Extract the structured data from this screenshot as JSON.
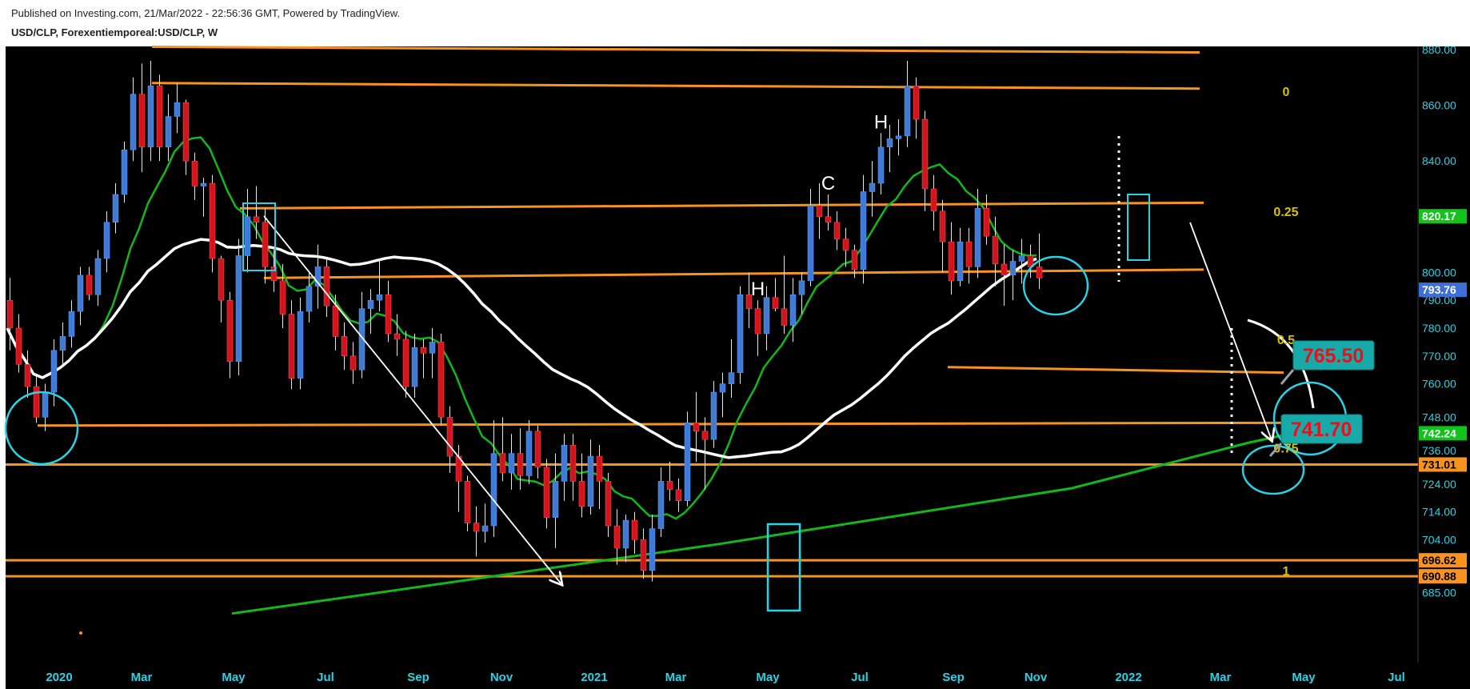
{
  "header": {
    "published": "Published on Investing.com, 21/Mar/2022 - 22:56:36 GMT, Powered by TradingView.",
    "symbol": "USD/CLP, Forexentiemporeal:USD/CLP, W"
  },
  "chart_data": {
    "type": "candlestick",
    "symbol": "USD/CLP",
    "timeframe": "W",
    "yticks": [
      685,
      690.88,
      696.62,
      704,
      714,
      724,
      731.01,
      736,
      742.24,
      748,
      760,
      770,
      780,
      790,
      793.76,
      800,
      820.17,
      840,
      860,
      880
    ],
    "ytick_labels": [
      "685.00",
      "690.88",
      "696.62",
      "704.00",
      "714.00",
      "724.00",
      "731.01",
      "736.00",
      "742.24",
      "748.00",
      "760.00",
      "770.00",
      "780.00",
      "790.00",
      "793.76",
      "800.00",
      "820.17",
      "840.00",
      "860.00",
      "880.00"
    ],
    "xticks": [
      "2020",
      "Mar",
      "May",
      "Jul",
      "Sep",
      "Nov",
      "2021",
      "Mar",
      "May",
      "Jul",
      "Sep",
      "Nov",
      "2022",
      "Mar",
      "May",
      "Jul"
    ],
    "badges": [
      {
        "label": "820.17",
        "value": 820.17,
        "color": "#12c31a"
      },
      {
        "label": "793.76",
        "value": 793.76,
        "color": "#3d6fd6"
      },
      {
        "label": "742.24",
        "value": 742.24,
        "color": "#12c31a"
      },
      {
        "label": "731.01",
        "value": 731.01,
        "color": "#f7931e"
      },
      {
        "label": "696.62",
        "value": 696.62,
        "color": "#f7931e"
      },
      {
        "label": "690.88",
        "value": 690.88,
        "color": "#f7931e"
      }
    ],
    "fib_labels": [
      {
        "label": "0",
        "value": 865
      },
      {
        "label": "0.25",
        "value": 822
      },
      {
        "label": "0.5",
        "value": 776
      },
      {
        "label": "0.75",
        "value": 737
      },
      {
        "label": "1",
        "value": 693
      }
    ],
    "pattern_labels": [
      {
        "label": "H",
        "candle": 85
      },
      {
        "label": "C",
        "candle": 93
      },
      {
        "label": "H",
        "candle": 99
      }
    ],
    "callouts": [
      {
        "label": "765.50",
        "value": 765.5
      },
      {
        "label": "741.70",
        "value": 741.7
      }
    ],
    "candles": [
      [
        0,
        790,
        798,
        772,
        780
      ],
      [
        1,
        780,
        785,
        764,
        767
      ],
      [
        2,
        767,
        772,
        755,
        759
      ],
      [
        3,
        759,
        763,
        746,
        748
      ],
      [
        4,
        748,
        760,
        743,
        757
      ],
      [
        5,
        757,
        776,
        752,
        772
      ],
      [
        6,
        772,
        782,
        766,
        777
      ],
      [
        7,
        777,
        790,
        773,
        786
      ],
      [
        8,
        786,
        802,
        781,
        799
      ],
      [
        9,
        799,
        802,
        790,
        792
      ],
      [
        10,
        792,
        808,
        788,
        805
      ],
      [
        11,
        805,
        822,
        800,
        818
      ],
      [
        12,
        818,
        832,
        814,
        828
      ],
      [
        13,
        828,
        847,
        825,
        844
      ],
      [
        14,
        844,
        870,
        840,
        864
      ],
      [
        15,
        864,
        875,
        836,
        845
      ],
      [
        16,
        845,
        876,
        840,
        867
      ],
      [
        17,
        867,
        871,
        840,
        845
      ],
      [
        18,
        845,
        864,
        840,
        856
      ],
      [
        19,
        856,
        868,
        850,
        861
      ],
      [
        20,
        861,
        862,
        835,
        840
      ],
      [
        21,
        840,
        843,
        826,
        831
      ],
      [
        22,
        831,
        834,
        820,
        832
      ],
      [
        23,
        832,
        835,
        800,
        805
      ],
      [
        24,
        805,
        806,
        782,
        790
      ],
      [
        25,
        790,
        793,
        762,
        768
      ],
      [
        26,
        768,
        812,
        763,
        806
      ],
      [
        27,
        806,
        830,
        800,
        820
      ],
      [
        28,
        820,
        831,
        812,
        818
      ],
      [
        29,
        818,
        823,
        796,
        802
      ],
      [
        30,
        802,
        808,
        793,
        797
      ],
      [
        31,
        797,
        803,
        780,
        785
      ],
      [
        32,
        785,
        790,
        758,
        762
      ],
      [
        33,
        762,
        791,
        758,
        786
      ],
      [
        34,
        786,
        800,
        782,
        795
      ],
      [
        35,
        795,
        810,
        787,
        802
      ],
      [
        36,
        802,
        805,
        784,
        788
      ],
      [
        37,
        788,
        792,
        772,
        777
      ],
      [
        38,
        777,
        782,
        765,
        770
      ],
      [
        39,
        770,
        775,
        760,
        765
      ],
      [
        40,
        765,
        793,
        762,
        787
      ],
      [
        41,
        787,
        794,
        778,
        790
      ],
      [
        42,
        790,
        805,
        786,
        792
      ],
      [
        43,
        792,
        797,
        775,
        778
      ],
      [
        44,
        778,
        785,
        770,
        776
      ],
      [
        45,
        776,
        779,
        755,
        759
      ],
      [
        46,
        759,
        778,
        755,
        773
      ],
      [
        47,
        773,
        776,
        762,
        771
      ],
      [
        48,
        771,
        780,
        762,
        775
      ],
      [
        49,
        775,
        778,
        745,
        748
      ],
      [
        50,
        748,
        752,
        728,
        734
      ],
      [
        51,
        734,
        738,
        714,
        725
      ],
      [
        52,
        725,
        727,
        707,
        710
      ],
      [
        53,
        710,
        716,
        698,
        707
      ],
      [
        54,
        707,
        717,
        703,
        709
      ],
      [
        55,
        709,
        747,
        705,
        735
      ],
      [
        56,
        735,
        748,
        725,
        728
      ],
      [
        57,
        728,
        742,
        722,
        735
      ],
      [
        58,
        735,
        744,
        722,
        727
      ],
      [
        59,
        727,
        747,
        724,
        743
      ],
      [
        60,
        743,
        745,
        726,
        730
      ],
      [
        61,
        730,
        733,
        708,
        712
      ],
      [
        62,
        712,
        735,
        701,
        725
      ],
      [
        63,
        725,
        742,
        718,
        738
      ],
      [
        64,
        738,
        742,
        718,
        725
      ],
      [
        65,
        725,
        735,
        712,
        716
      ],
      [
        66,
        716,
        740,
        713,
        734
      ],
      [
        67,
        734,
        738,
        715,
        725
      ],
      [
        68,
        725,
        728,
        705,
        709
      ],
      [
        69,
        709,
        715,
        695,
        701
      ],
      [
        70,
        701,
        713,
        696,
        711
      ],
      [
        71,
        711,
        714,
        699,
        704
      ],
      [
        72,
        704,
        708,
        690,
        693
      ],
      [
        73,
        693,
        713,
        689,
        708
      ],
      [
        74,
        708,
        730,
        705,
        725
      ],
      [
        75,
        725,
        732,
        718,
        722
      ],
      [
        76,
        722,
        726,
        714,
        718
      ],
      [
        77,
        718,
        750,
        716,
        746
      ],
      [
        78,
        746,
        757,
        732,
        743
      ],
      [
        79,
        743,
        748,
        722,
        740
      ],
      [
        80,
        740,
        761,
        737,
        757
      ],
      [
        81,
        757,
        764,
        748,
        760
      ],
      [
        82,
        760,
        776,
        755,
        764
      ],
      [
        83,
        764,
        795,
        760,
        792
      ],
      [
        84,
        792,
        800,
        780,
        787
      ],
      [
        85,
        787,
        790,
        770,
        778
      ],
      [
        86,
        778,
        795,
        772,
        791
      ],
      [
        87,
        791,
        798,
        786,
        787
      ],
      [
        88,
        787,
        806,
        778,
        781
      ],
      [
        89,
        781,
        798,
        775,
        792
      ],
      [
        90,
        792,
        800,
        785,
        797
      ],
      [
        91,
        797,
        830,
        795,
        824
      ],
      [
        92,
        824,
        832,
        812,
        820
      ],
      [
        93,
        820,
        828,
        815,
        818
      ],
      [
        94,
        818,
        822,
        808,
        812
      ],
      [
        95,
        812,
        816,
        802,
        808
      ],
      [
        96,
        808,
        810,
        798,
        801
      ],
      [
        97,
        801,
        835,
        796,
        829
      ],
      [
        98,
        829,
        840,
        820,
        832
      ],
      [
        99,
        832,
        850,
        828,
        845
      ],
      [
        100,
        845,
        853,
        836,
        848
      ],
      [
        101,
        848,
        855,
        842,
        849
      ],
      [
        102,
        849,
        876,
        845,
        867
      ],
      [
        103,
        867,
        870,
        848,
        855
      ],
      [
        104,
        855,
        858,
        822,
        830
      ],
      [
        105,
        830,
        835,
        815,
        822
      ],
      [
        106,
        822,
        826,
        800,
        811
      ],
      [
        107,
        811,
        818,
        792,
        797
      ],
      [
        108,
        797,
        816,
        795,
        811
      ],
      [
        109,
        811,
        816,
        796,
        802
      ],
      [
        110,
        802,
        830,
        798,
        823
      ],
      [
        111,
        823,
        828,
        810,
        813
      ],
      [
        112,
        813,
        820,
        795,
        803
      ],
      [
        113,
        803,
        810,
        788,
        799
      ],
      [
        114,
        799,
        808,
        790,
        804
      ],
      [
        115,
        804,
        812,
        796,
        806
      ],
      [
        116,
        806,
        810,
        798,
        802
      ],
      [
        117,
        802,
        814,
        794,
        798
      ]
    ]
  }
}
